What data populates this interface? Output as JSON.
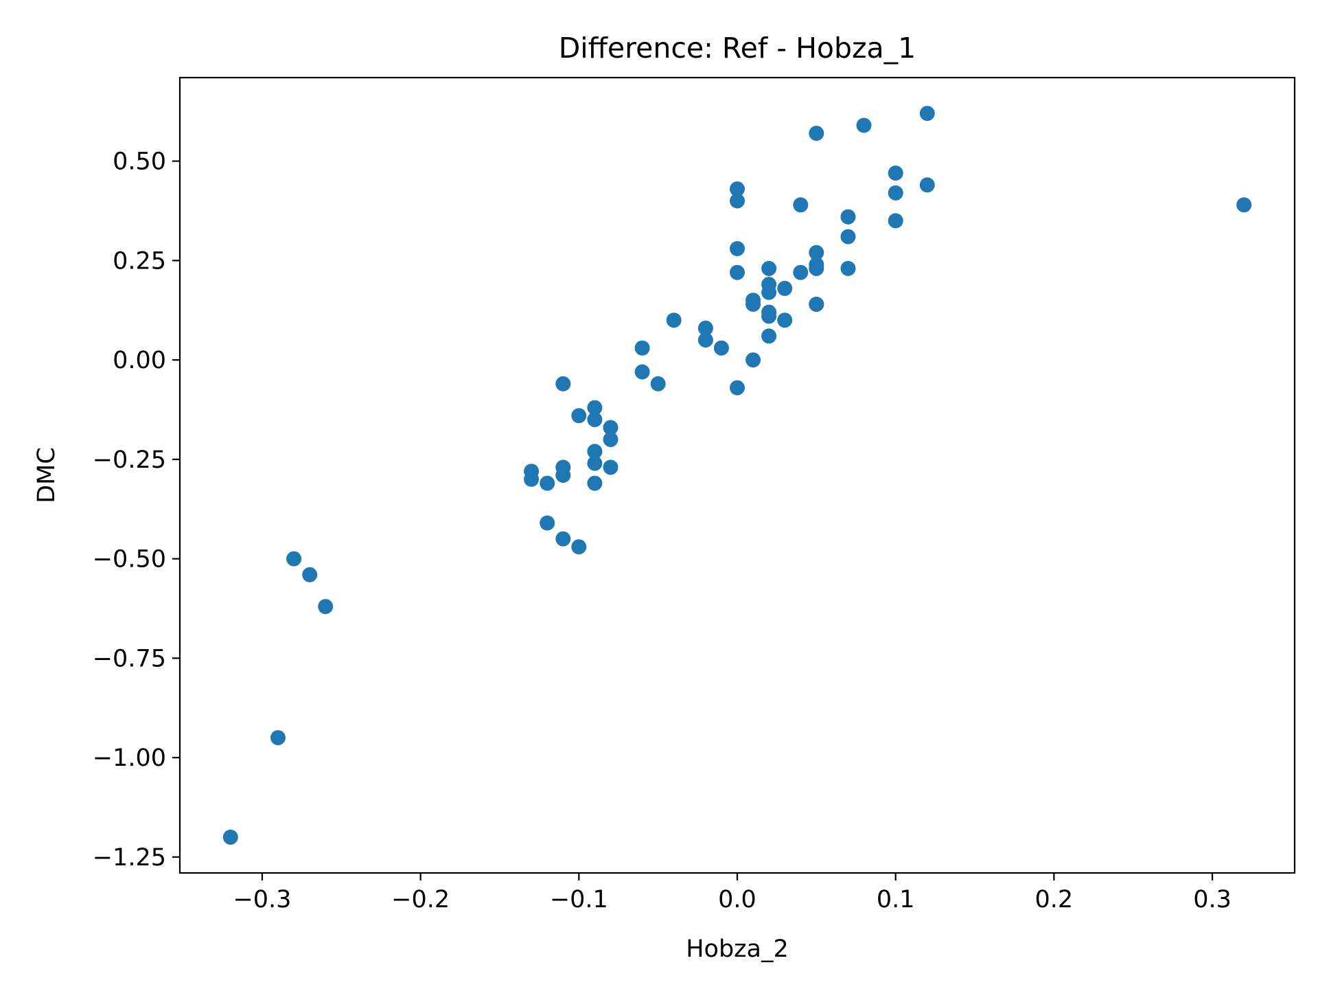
{
  "chart_data": {
    "type": "scatter",
    "title": "Difference: Ref - Hobza_1",
    "xlabel": "Hobza_2",
    "ylabel": "DMC",
    "xlim": [
      -0.352,
      0.352
    ],
    "ylim": [
      -1.29,
      0.71
    ],
    "xticks": [
      -0.3,
      -0.2,
      -0.1,
      0.0,
      0.1,
      0.2,
      0.3
    ],
    "xtick_labels": [
      "−0.3",
      "−0.2",
      "−0.1",
      "0.0",
      "0.1",
      "0.2",
      "0.3"
    ],
    "yticks": [
      0.5,
      0.25,
      0.0,
      -0.25,
      -0.5,
      -0.75,
      -1.0,
      -1.25
    ],
    "ytick_labels": [
      "0.50",
      "0.25",
      "0.00",
      "−0.25",
      "−0.50",
      "−0.75",
      "−1.00",
      "−1.25"
    ],
    "grid": false,
    "marker_color": "#1f77b4",
    "points": [
      {
        "x": 0.12,
        "y": 0.62
      },
      {
        "x": 0.08,
        "y": 0.59
      },
      {
        "x": 0.05,
        "y": 0.57
      },
      {
        "x": 0.1,
        "y": 0.47
      },
      {
        "x": 0.12,
        "y": 0.44
      },
      {
        "x": 0.0,
        "y": 0.43
      },
      {
        "x": 0.1,
        "y": 0.42
      },
      {
        "x": 0.0,
        "y": 0.4
      },
      {
        "x": 0.04,
        "y": 0.39
      },
      {
        "x": 0.32,
        "y": 0.39
      },
      {
        "x": 0.07,
        "y": 0.36
      },
      {
        "x": 0.1,
        "y": 0.35
      },
      {
        "x": 0.07,
        "y": 0.31
      },
      {
        "x": 0.0,
        "y": 0.28
      },
      {
        "x": 0.05,
        "y": 0.27
      },
      {
        "x": 0.05,
        "y": 0.24
      },
      {
        "x": 0.07,
        "y": 0.23
      },
      {
        "x": 0.02,
        "y": 0.23
      },
      {
        "x": 0.05,
        "y": 0.23
      },
      {
        "x": 0.0,
        "y": 0.22
      },
      {
        "x": 0.04,
        "y": 0.22
      },
      {
        "x": 0.02,
        "y": 0.19
      },
      {
        "x": 0.03,
        "y": 0.18
      },
      {
        "x": 0.02,
        "y": 0.17
      },
      {
        "x": 0.01,
        "y": 0.15
      },
      {
        "x": 0.05,
        "y": 0.14
      },
      {
        "x": 0.01,
        "y": 0.14
      },
      {
        "x": 0.05,
        "y": 0.14
      },
      {
        "x": 0.02,
        "y": 0.12
      },
      {
        "x": 0.02,
        "y": 0.11
      },
      {
        "x": 0.03,
        "y": 0.1
      },
      {
        "x": -0.04,
        "y": 0.1
      },
      {
        "x": -0.02,
        "y": 0.08
      },
      {
        "x": 0.02,
        "y": 0.06
      },
      {
        "x": -0.02,
        "y": 0.05
      },
      {
        "x": -0.01,
        "y": 0.03
      },
      {
        "x": -0.06,
        "y": 0.03
      },
      {
        "x": 0.01,
        "y": 0.0
      },
      {
        "x": -0.06,
        "y": -0.03
      },
      {
        "x": -0.05,
        "y": -0.06
      },
      {
        "x": -0.11,
        "y": -0.06
      },
      {
        "x": 0.0,
        "y": -0.07
      },
      {
        "x": -0.09,
        "y": -0.12
      },
      {
        "x": -0.1,
        "y": -0.14
      },
      {
        "x": -0.09,
        "y": -0.15
      },
      {
        "x": -0.08,
        "y": -0.17
      },
      {
        "x": -0.08,
        "y": -0.2
      },
      {
        "x": -0.09,
        "y": -0.23
      },
      {
        "x": -0.09,
        "y": -0.26
      },
      {
        "x": -0.08,
        "y": -0.27
      },
      {
        "x": -0.11,
        "y": -0.27
      },
      {
        "x": -0.13,
        "y": -0.28
      },
      {
        "x": -0.11,
        "y": -0.29
      },
      {
        "x": -0.13,
        "y": -0.3
      },
      {
        "x": -0.12,
        "y": -0.31
      },
      {
        "x": -0.09,
        "y": -0.31
      },
      {
        "x": -0.12,
        "y": -0.41
      },
      {
        "x": -0.11,
        "y": -0.45
      },
      {
        "x": -0.1,
        "y": -0.47
      },
      {
        "x": -0.28,
        "y": -0.5
      },
      {
        "x": -0.27,
        "y": -0.54
      },
      {
        "x": -0.26,
        "y": -0.62
      },
      {
        "x": -0.29,
        "y": -0.95
      },
      {
        "x": -0.32,
        "y": -1.2
      }
    ]
  }
}
